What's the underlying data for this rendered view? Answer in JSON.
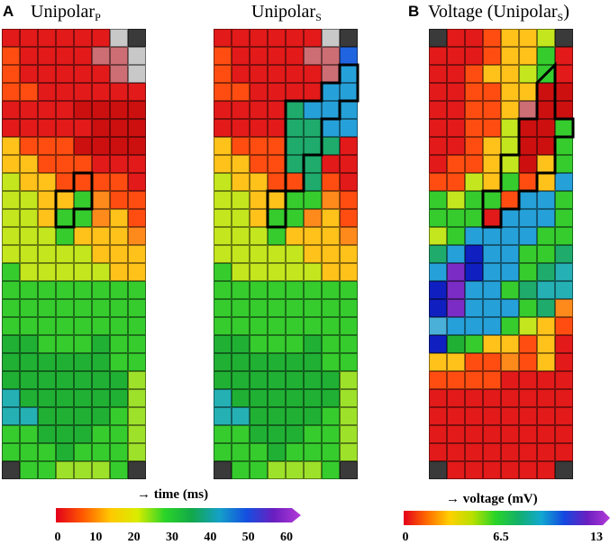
{
  "panels": {
    "a": {
      "letter": "A",
      "title_main": "Unipolar",
      "title_sub": "P"
    },
    "a2": {
      "title_main": "Unipolar",
      "title_sub": "S"
    },
    "b": {
      "letter": "B",
      "title_main": "Voltage (Unipolar",
      "title_sub": "S",
      "title_close": ")"
    }
  },
  "colorbars": {
    "time": {
      "label": "→ time (ms)",
      "ticks": [
        "0",
        "10",
        "20",
        "30",
        "40",
        "50",
        "60"
      ],
      "stops": [
        "#e3001b",
        "#ff5a00",
        "#ffc800",
        "#d9ec00",
        "#2ad428",
        "#12a84a",
        "#15a0c8",
        "#1450e0",
        "#6a1ec0",
        "#b53ad8"
      ]
    },
    "voltage": {
      "label": "→ voltage (mV)",
      "ticks": [
        "0",
        "6.5",
        "13"
      ],
      "stops": [
        "#e3001b",
        "#ff6a00",
        "#ffd000",
        "#b8e000",
        "#2ad428",
        "#12b06a",
        "#12a8d0",
        "#1448e0",
        "#6a1ec0",
        "#b53ad8"
      ]
    }
  },
  "maps": {
    "palette": {
      "K": "#3a3a3a",
      "W": "#c8c8c8",
      "P": "#cc6e74",
      "R": "#e21a1a",
      "D": "#cc1010",
      "O": "#ff4d12",
      "o": "#ff8a1c",
      "Y": "#ffc21a",
      "y": "#f0e020",
      "L": "#c4e61e",
      "l": "#9ee12a",
      "G": "#36cc2e",
      "g": "#20b034",
      "T": "#1eab6c",
      "t": "#25b0b4",
      "C": "#26a0d8",
      "B": "#2064e0",
      "N": "#1020c0",
      "V": "#7a2cc4",
      "M": "#4ab0d8"
    },
    "unipolar_p": [
      "RRRRRRWK",
      "ORRRRPPW",
      "ORRRRRPW",
      "OORRRRRR",
      "RRRRDDDD",
      "RRRRRDDD",
      "YOOODDDD",
      "YYOOORRR",
      "LYYOOOOR",
      "LLYYGoOO",
      "LLYGGoYO",
      "LLLGYYYo",
      "LLLLLYYY",
      "GLLLLLYY",
      "GGGGGGGG",
      "GGGGGGGG",
      "GGGGGGGG",
      "ggGGGgGG",
      "ggggggGG",
      "gggggggl",
      "tggggggl",
      "ttggggGl",
      "GGgggGGl",
      "GGGgGGGl",
      "KGGlllGK"
    ],
    "unipolar_s": [
      "RRRRRRWK",
      "ORRRRPPB",
      "ORRRRRPC",
      "OORRRRCC",
      "RRRRTCCC",
      "RRRRTTCC",
      "YOOOTTTR",
      "YYOOTTRR",
      "LYYOOTOR",
      "LLYYGGoO",
      "LLYGGoYO",
      "LLLGYYYo",
      "LLLLLYYY",
      "GLLLLLYY",
      "GGGGGGGG",
      "GGGGGGGG",
      "GGGGGGGG",
      "ggGGGgGG",
      "ggggggGG",
      "gggggggl",
      "tggggggl",
      "ttggggGl",
      "GGgggGGl",
      "GGGgGGGl",
      "KGGlllGK"
    ],
    "voltage": [
      "KRROYYLK",
      "RRROYYGR",
      "RROYYLGR",
      "RROOYYDD",
      "RROOYPDD",
      "RROOLDDG",
      "RROYLDDG",
      "ROOYLDYG",
      "OOLYGOYC",
      "GLGGOCCG",
      "GGGRCCCG",
      "LGCCCCGG",
      "TCNCCGGT",
      "CVNCCGTt",
      "NVCCGTtt",
      "NVCCCGTo",
      "MCCCGLYO",
      "NgGYYOYR",
      "YYOOoOYR",
      "OOOORRRR",
      "RRRRRRRR",
      "RRRRRRRR",
      "RRRRRRRR",
      "RRRRRRRR",
      "KRRRRRRK"
    ]
  }
}
